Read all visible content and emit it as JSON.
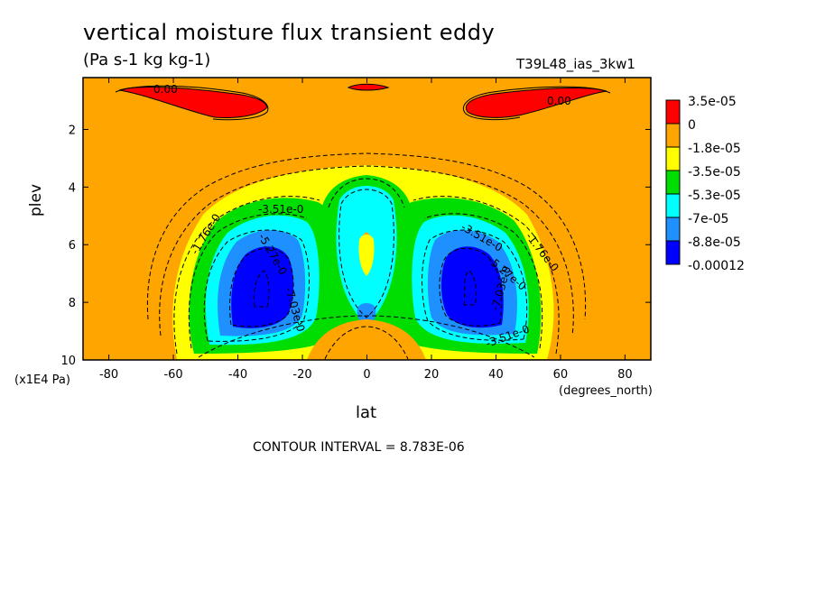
{
  "chart_data": {
    "type": "contour",
    "title": "vertical moisture flux transient eddy",
    "units": "(Pa s-1 kg kg-1)",
    "run_id": "T39L48_ias_3kw1",
    "xlabel": "lat",
    "x_unit": "(degrees_north)",
    "ylabel": "plev",
    "y_unit": "(x1E4 Pa)",
    "xlim": [
      -88,
      88
    ],
    "ylim": [
      10,
      0.2
    ],
    "x_ticks": [
      "-80",
      "-60",
      "-40",
      "-20",
      "0",
      "20",
      "40",
      "60",
      "80"
    ],
    "x_tick_values": [
      -80,
      -60,
      -40,
      -20,
      0,
      20,
      40,
      60,
      80
    ],
    "y_ticks": [
      "2",
      "4",
      "6",
      "8",
      "10"
    ],
    "y_tick_values": [
      2,
      4,
      6,
      8,
      10
    ],
    "contour_interval_text": "CONTOUR INTERVAL = 8.783E-06",
    "contour_labels": [
      "0.00",
      "0.00",
      "-1.76e-0",
      "-3.51e-0",
      "-5.27e-0",
      "-7.03e-0",
      "-3.51e-0",
      "-5.27e-0",
      "-1.76e-0",
      "-7.03e-0",
      "-3.51e-0"
    ],
    "legend": [
      {
        "label": "3.5e-05",
        "color": "#ff0000"
      },
      {
        "label": "0",
        "color": "#ffa500"
      },
      {
        "label": "-1.8e-05",
        "color": "#ffff00"
      },
      {
        "label": "-3.5e-05",
        "color": "#00dd00"
      },
      {
        "label": "-5.3e-05",
        "color": "#00ffff"
      },
      {
        "label": "-7e-05",
        "color": "#1e90ff"
      },
      {
        "label": "-8.8e-05",
        "color": "#0000ff"
      },
      {
        "label": "-0.00012",
        "color": ""
      }
    ],
    "features": [
      {
        "kind": "minimum",
        "lat": -33,
        "plev": 7.3,
        "level_color": "#0000ff"
      },
      {
        "kind": "minimum",
        "lat": 33,
        "plev": 7.3,
        "level_color": "#0000ff"
      },
      {
        "kind": "maximum",
        "lat": -60,
        "plev": 0.8,
        "level_color": "#ff0000"
      },
      {
        "kind": "maximum",
        "lat": 60,
        "plev": 0.8,
        "level_color": "#ff0000"
      }
    ]
  }
}
